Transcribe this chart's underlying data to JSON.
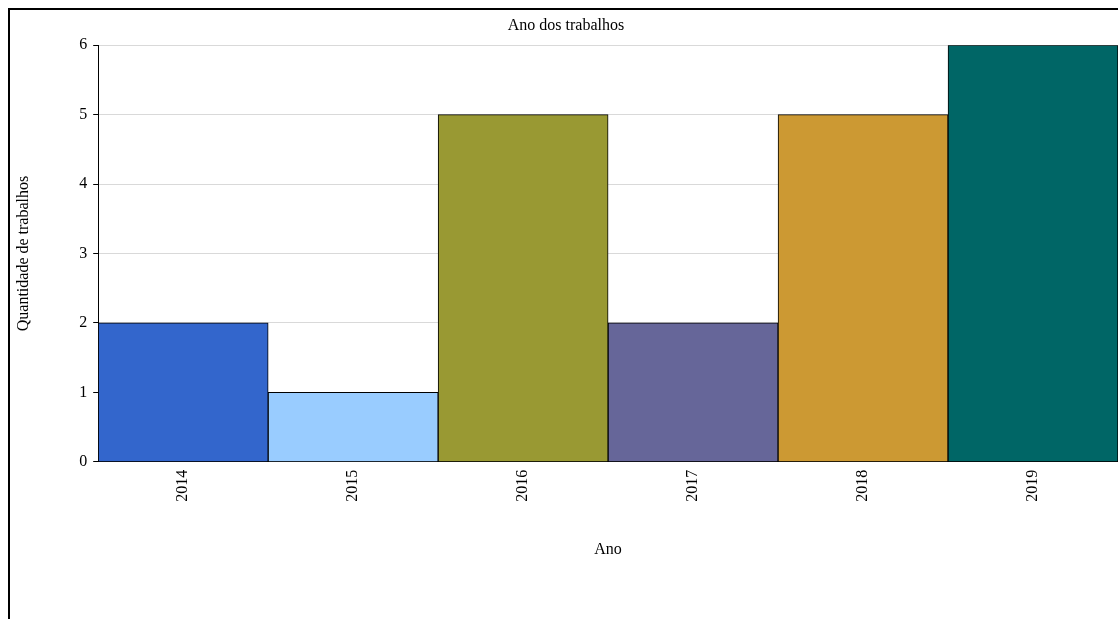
{
  "chart_data": {
    "type": "bar",
    "title": "Ano dos trabalhos",
    "xlabel": "Ano",
    "ylabel": "Quantidade de trabalhos",
    "categories": [
      "2014",
      "2015",
      "2016",
      "2017",
      "2018",
      "2019"
    ],
    "values": [
      2,
      1,
      5,
      2,
      5,
      6
    ],
    "colors": [
      "#3366cc",
      "#99ccff",
      "#999933",
      "#666699",
      "#cc9933",
      "#006666"
    ],
    "ylim": [
      0,
      6
    ],
    "yticks": [
      0,
      1,
      2,
      3,
      4,
      5,
      6
    ],
    "grid": "y"
  }
}
